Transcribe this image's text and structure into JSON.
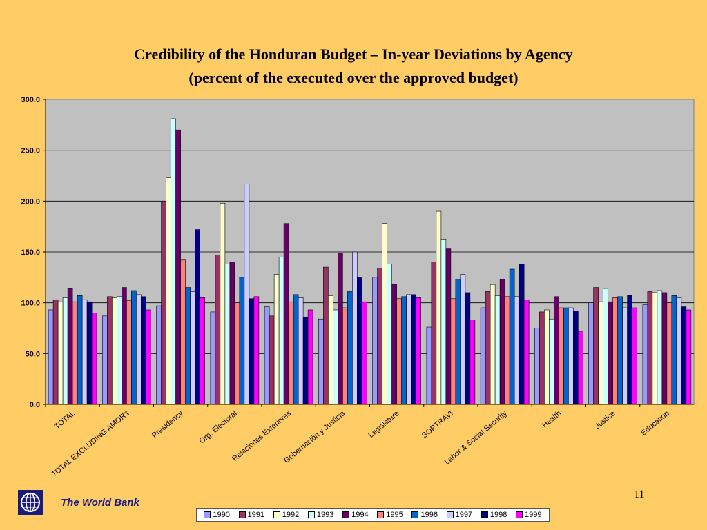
{
  "slide": {
    "title_line1": "Credibility of the Honduran Budget – In-year Deviations by Agency",
    "title_line2": "(percent of the executed over the approved budget)",
    "org_name": "The World Bank",
    "page_number": "11",
    "background_color": "#FFCC66"
  },
  "chart_data": {
    "type": "bar",
    "title": "Credibility of the Honduran Budget – In-year Deviations by Agency",
    "subtitle": "(percent of the executed over the approved budget)",
    "ylim": [
      0,
      300
    ],
    "yticks": [
      "0.0",
      "50.0",
      "100.0",
      "150.0",
      "200.0",
      "250.0",
      "300.0"
    ],
    "grid": true,
    "legend_position": "bottom",
    "plot_background": "#C0C0C0",
    "categories": [
      "TOTAL",
      "TOTAL EXCLUDING AMOR’t",
      "Presidency",
      "Org. Electoral",
      "Relaciones Exteriores",
      "Gobernación y Justicia",
      "Legislature",
      "SOPTRAVI",
      "Labor & Social Security",
      "Health",
      "Justice",
      "Education"
    ],
    "series": [
      {
        "name": "1990",
        "color": "#9999FF",
        "values": [
          93,
          87,
          97,
          91,
          96,
          84,
          125,
          76,
          95,
          75,
          100,
          98
        ]
      },
      {
        "name": "1991",
        "color": "#993366",
        "values": [
          103,
          106,
          200,
          147,
          87,
          135,
          134,
          140,
          111,
          91,
          115,
          111
        ]
      },
      {
        "name": "1992",
        "color": "#FFFFCC",
        "values": [
          101,
          105,
          223,
          198,
          128,
          107,
          178,
          190,
          118,
          93,
          101,
          110
        ]
      },
      {
        "name": "1993",
        "color": "#CCFFFF",
        "values": [
          105,
          106,
          281,
          138,
          145,
          93,
          138,
          162,
          107,
          84,
          114,
          112
        ]
      },
      {
        "name": "1994",
        "color": "#660066",
        "values": [
          114,
          115,
          270,
          140,
          178,
          149,
          118,
          153,
          123,
          106,
          101,
          110
        ]
      },
      {
        "name": "1995",
        "color": "#FF8080",
        "values": [
          101,
          102,
          142,
          100,
          101,
          95,
          104,
          104,
          106,
          95,
          105,
          100
        ]
      },
      {
        "name": "1996",
        "color": "#0066CC",
        "values": [
          107,
          112,
          115,
          125,
          108,
          111,
          106,
          123,
          133,
          95,
          106,
          107
        ]
      },
      {
        "name": "1997",
        "color": "#CCCCFF",
        "values": [
          103,
          108,
          111,
          217,
          105,
          150,
          108,
          128,
          106,
          95,
          95,
          105
        ]
      },
      {
        "name": "1998",
        "color": "#000080",
        "values": [
          101,
          106,
          172,
          104,
          86,
          125,
          108,
          110,
          138,
          92,
          107,
          96
        ]
      },
      {
        "name": "1999",
        "color": "#FF00FF",
        "values": [
          90,
          93,
          105,
          106,
          93,
          101,
          105,
          83,
          103,
          72,
          95,
          93
        ]
      }
    ]
  }
}
